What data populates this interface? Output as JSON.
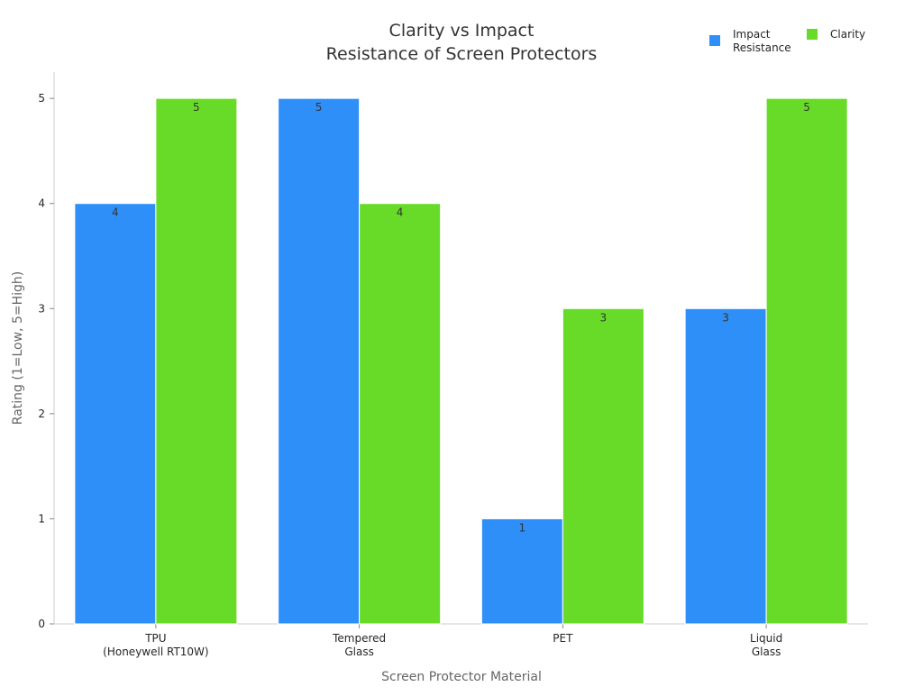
{
  "chart_data": {
    "type": "bar",
    "title": [
      "Clarity vs Impact",
      "Resistance of Screen Protectors"
    ],
    "xlabel": "Screen Protector Material",
    "ylabel": "Rating (1=Low, 5=High)",
    "ylim": [
      0,
      5.25
    ],
    "yticks": [
      0,
      1,
      2,
      3,
      4,
      5
    ],
    "categories": [
      [
        "TPU",
        "(Honeywell RT10W)"
      ],
      [
        "Tempered",
        "Glass"
      ],
      [
        "PET"
      ],
      [
        "Liquid",
        "Glass"
      ]
    ],
    "series": [
      {
        "name": [
          "Impact",
          "Resistance"
        ],
        "color": "#2f8ff8",
        "values": [
          4,
          5,
          1,
          3
        ]
      },
      {
        "name": [
          "Clarity"
        ],
        "color": "#68db29",
        "values": [
          5,
          4,
          3,
          5
        ]
      }
    ],
    "grid": false,
    "legend_position": "top-right"
  }
}
